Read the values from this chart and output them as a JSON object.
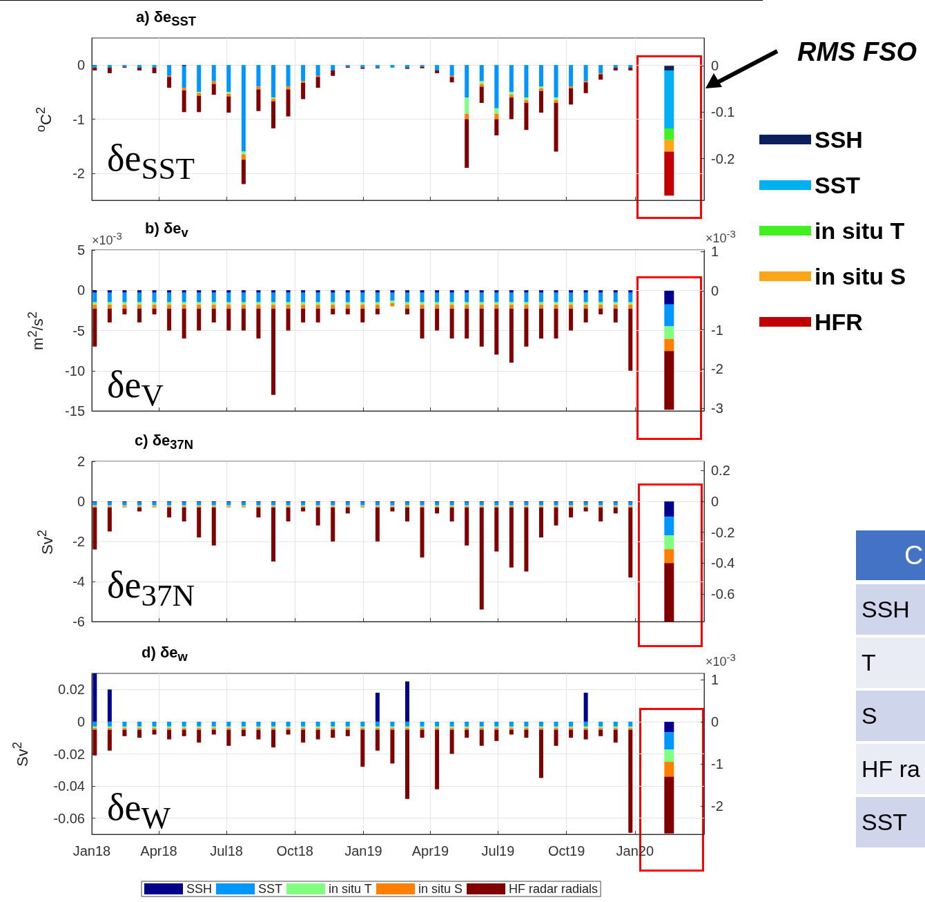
{
  "chart_data": [
    {
      "type": "bar",
      "title": "a) δe$_{SST}$",
      "ylabel": "$^{o}$C$^{2}$",
      "annotations": [
        "δe$_{SST}$",
        "RMS FSO"
      ],
      "stacked": true,
      "grid": true,
      "legend": "right",
      "tick_labels": "y",
      "x": [
        "2018-01-05",
        "2018-01-25",
        "2018-02-14",
        "2018-03-06",
        "2018-03-26",
        "2018-04-15",
        "2018-05-05",
        "2018-05-25",
        "2018-06-14",
        "2018-07-04",
        "2018-07-24",
        "2018-08-13",
        "2018-09-02",
        "2018-09-22",
        "2018-10-12",
        "2018-11-01",
        "2018-11-21",
        "2018-12-11",
        "2018-12-31",
        "2019-01-20",
        "2019-02-09",
        "2019-03-01",
        "2019-03-21",
        "2019-04-10",
        "2019-04-30",
        "2019-05-20",
        "2019-06-09",
        "2019-06-29",
        "2019-07-19",
        "2019-08-08",
        "2019-08-28",
        "2019-09-17",
        "2019-10-07",
        "2019-10-27",
        "2019-11-16",
        "2019-12-06",
        "2019-12-26"
      ],
      "xlim": [
        "2018-01-01",
        "2020-04-03"
      ],
      "xticks": [
        {
          "value": "2018-01-01",
          "label": null
        },
        {
          "value": "2018-04-01",
          "label": null
        },
        {
          "value": "2018-07-01",
          "label": null
        },
        {
          "value": "2018-10-01",
          "label": null
        },
        {
          "value": "2019-01-01",
          "label": null
        },
        {
          "value": "2019-04-01",
          "label": null
        },
        {
          "value": "2019-07-01",
          "label": null
        },
        {
          "value": "2019-10-01",
          "label": null
        },
        {
          "value": "2020-01-01",
          "label": null
        }
      ],
      "ylim": [
        -2.5,
        0.5
      ],
      "yticks": [
        -2,
        -1,
        0
      ],
      "y2lim": [
        -0.29,
        0.06
      ],
      "y2ticks": [
        -0.2,
        -0.1,
        0
      ],
      "series": [
        {
          "color": "#00008b",
          "values": [
            0,
            0,
            0,
            0,
            0,
            0,
            -0.02,
            0,
            0,
            0,
            0,
            0,
            0,
            0,
            0,
            0,
            0,
            0,
            0,
            0,
            0,
            0,
            0,
            0,
            0,
            0,
            0,
            0,
            0,
            0,
            0,
            0,
            0,
            0,
            0,
            0,
            0
          ]
        },
        {
          "color": "#0096ff",
          "values": [
            -0.05,
            -0.05,
            -0.03,
            -0.05,
            -0.05,
            -0.2,
            -0.4,
            -0.5,
            -0.3,
            -0.5,
            -1.6,
            -0.4,
            -0.6,
            -0.4,
            -0.3,
            -0.2,
            -0.1,
            -0.03,
            -0.05,
            -0.05,
            -0.05,
            -0.05,
            -0.03,
            -0.1,
            -0.2,
            -0.6,
            -0.3,
            -0.8,
            -0.5,
            -0.6,
            -0.4,
            -0.6,
            -0.4,
            -0.3,
            -0.15,
            -0.05,
            -0.05
          ]
        },
        {
          "color": "#80ff80",
          "values": [
            0,
            0,
            0,
            0,
            0,
            0,
            0,
            -0.02,
            0,
            -0.03,
            -0.05,
            0,
            -0.02,
            0,
            0,
            0,
            0,
            0,
            0,
            0,
            0,
            0,
            0,
            0,
            0,
            -0.3,
            -0.05,
            -0.1,
            -0.05,
            -0.05,
            -0.03,
            -0.05,
            0,
            0,
            0,
            0,
            0
          ]
        },
        {
          "color": "#ff7f00",
          "values": [
            0,
            0,
            0,
            0,
            0,
            -0.02,
            -0.05,
            -0.05,
            -0.05,
            -0.05,
            -0.1,
            -0.05,
            -0.05,
            -0.05,
            -0.03,
            -0.02,
            0,
            0,
            0,
            0,
            0,
            0,
            0,
            0,
            -0.02,
            -0.1,
            -0.05,
            -0.1,
            -0.05,
            -0.05,
            -0.05,
            -0.05,
            -0.03,
            -0.02,
            -0.02,
            0,
            0
          ]
        },
        {
          "color": "#800000",
          "values": [
            -0.05,
            -0.1,
            -0.02,
            -0.05,
            -0.1,
            -0.2,
            -0.4,
            -0.3,
            -0.2,
            -0.3,
            -0.45,
            -0.4,
            -0.5,
            -0.5,
            -0.3,
            -0.2,
            -0.1,
            -0.02,
            -0.02,
            -0.01,
            0,
            -0.02,
            -0.03,
            -0.05,
            -0.1,
            -0.9,
            -0.3,
            -0.3,
            -0.4,
            -0.5,
            -0.4,
            -0.9,
            -0.3,
            -0.2,
            -0.1,
            -0.05,
            -0.05
          ]
        },
        {
          "name": "SSH",
          "color": "#0b1f5c",
          "axis": "y2",
          "x": [
            "2020-02-16"
          ],
          "values": [
            -0.01
          ]
        },
        {
          "name": "SST",
          "color": "#00b0f0",
          "axis": "y2",
          "x": [
            "2020-02-16"
          ],
          "values": [
            -0.125
          ]
        },
        {
          "name": "in situ T",
          "color": "#40f020",
          "axis": "y2",
          "x": [
            "2020-02-16"
          ],
          "values": [
            -0.025
          ]
        },
        {
          "name": "in situ S",
          "color": "#ffa518",
          "axis": "y2",
          "x": [
            "2020-02-16"
          ],
          "values": [
            -0.025
          ]
        },
        {
          "name": "HFR",
          "color": "#c00000",
          "axis": "y2",
          "x": [
            "2020-02-16"
          ],
          "values": [
            -0.095
          ]
        }
      ]
    },
    {
      "type": "bar",
      "title": "b) δe$_{v}$",
      "ylabel": "m$^{2}$/s$^{2}$",
      "annotations": [
        "δe$_{V}$",
        "×10$^{-3}$",
        "×10$^{-3}$"
      ],
      "stacked": true,
      "grid": true,
      "tick_labels": "y",
      "x": [
        "2018-01-05",
        "2018-01-25",
        "2018-02-14",
        "2018-03-06",
        "2018-03-26",
        "2018-04-15",
        "2018-05-05",
        "2018-05-25",
        "2018-06-14",
        "2018-07-04",
        "2018-07-24",
        "2018-08-13",
        "2018-09-02",
        "2018-09-22",
        "2018-10-12",
        "2018-11-01",
        "2018-11-21",
        "2018-12-11",
        "2018-12-31",
        "2019-01-20",
        "2019-02-09",
        "2019-03-01",
        "2019-03-21",
        "2019-04-10",
        "2019-04-30",
        "2019-05-20",
        "2019-06-09",
        "2019-06-29",
        "2019-07-19",
        "2019-08-08",
        "2019-08-28",
        "2019-09-17",
        "2019-10-07",
        "2019-10-27",
        "2019-11-16",
        "2019-12-06",
        "2019-12-26"
      ],
      "xlim": [
        "2018-01-01",
        "2020-04-03"
      ],
      "xticks": [
        {
          "value": "2018-01-01",
          "label": null
        },
        {
          "value": "2018-04-01",
          "label": null
        },
        {
          "value": "2018-07-01",
          "label": null
        },
        {
          "value": "2018-10-01",
          "label": null
        },
        {
          "value": "2019-01-01",
          "label": null
        },
        {
          "value": "2019-04-01",
          "label": null
        },
        {
          "value": "2019-07-01",
          "label": null
        },
        {
          "value": "2019-10-01",
          "label": null
        },
        {
          "value": "2020-01-01",
          "label": null
        }
      ],
      "ylim": [
        -15,
        5
      ],
      "yticks": [
        -15,
        -10,
        -5,
        0,
        5
      ],
      "y2lim": [
        -3.07,
        1.04
      ],
      "y2ticks": [
        -3,
        -2,
        -1,
        0,
        1
      ],
      "series": [
        {
          "color": "#00008b",
          "values": [
            -0.3,
            -0.3,
            -0.3,
            -0.3,
            -0.3,
            -0.3,
            -0.3,
            -0.3,
            -0.3,
            -0.3,
            -0.3,
            -0.3,
            -0.3,
            -0.3,
            -0.3,
            -0.3,
            -0.3,
            -0.3,
            -0.3,
            -0.3,
            -0.3,
            -0.3,
            -0.3,
            -0.3,
            -0.3,
            -0.3,
            -0.3,
            -0.3,
            -0.3,
            -0.3,
            -0.3,
            -0.3,
            -0.3,
            -0.3,
            -0.3,
            -0.3,
            -0.3
          ]
        },
        {
          "color": "#0096ff",
          "values": [
            -1.2,
            -1.2,
            -1.2,
            -1.2,
            -1.2,
            -1.2,
            -1.2,
            -1.2,
            -1.2,
            -1.2,
            -1.2,
            -1.2,
            -1.2,
            -1.2,
            -1.2,
            -1.2,
            -1.2,
            -1.2,
            -1.2,
            -1.2,
            -1,
            -1.2,
            -1.2,
            -1.2,
            -1.2,
            -1.2,
            -1.2,
            -1.2,
            -1.2,
            -1.2,
            -1.2,
            -1.2,
            -1.2,
            -1.2,
            -1.2,
            -1.2,
            -1.2
          ]
        },
        {
          "color": "#80ff80",
          "values": [
            -0.3,
            -0.3,
            -0.3,
            -0.3,
            -0.3,
            -0.3,
            -0.3,
            -0.3,
            -0.3,
            -0.3,
            -0.3,
            -0.3,
            -0.3,
            -0.3,
            -0.3,
            -0.3,
            -0.3,
            -0.3,
            -0.3,
            -0.3,
            -0.3,
            -0.3,
            -0.3,
            -0.3,
            -0.3,
            -0.3,
            -0.3,
            -0.3,
            -0.3,
            -0.3,
            -0.3,
            -0.3,
            -0.3,
            -0.3,
            -0.3,
            -0.3,
            -0.3
          ]
        },
        {
          "color": "#ff7f00",
          "values": [
            -0.5,
            -0.5,
            -0.5,
            -0.5,
            -0.5,
            -0.5,
            -0.5,
            -0.5,
            -0.5,
            -0.5,
            -0.5,
            -0.5,
            -0.5,
            -0.5,
            -0.5,
            -0.5,
            -0.5,
            -0.5,
            -0.5,
            -0.5,
            -0.4,
            -0.5,
            -0.5,
            -0.5,
            -0.5,
            -0.5,
            -0.5,
            -0.5,
            -0.5,
            -0.5,
            -0.5,
            -0.5,
            -0.5,
            -0.5,
            -0.5,
            -0.5,
            -0.5
          ]
        },
        {
          "color": "#800000",
          "values": [
            -4.7,
            -1.7,
            -0.7,
            -1.7,
            -0.7,
            -2.7,
            -3.7,
            -2.7,
            -1.7,
            -2.7,
            -2.7,
            -3.7,
            -10.7,
            -2.7,
            -1.7,
            -1.7,
            -0.7,
            -0.7,
            -1.7,
            -0.7,
            0,
            -0.7,
            -3.7,
            -2.7,
            -3.7,
            -3.7,
            -4.7,
            -5.7,
            -6.7,
            -4.7,
            -3.7,
            -3.7,
            -2.7,
            -1.7,
            -0.7,
            -1.7,
            -7.7
          ]
        },
        {
          "color": "#00008b",
          "axis": "y2",
          "x": [
            "2020-02-16"
          ],
          "values": [
            -0.35
          ]
        },
        {
          "color": "#0096ff",
          "axis": "y2",
          "x": [
            "2020-02-16"
          ],
          "values": [
            -0.56
          ]
        },
        {
          "color": "#80ff80",
          "axis": "y2",
          "x": [
            "2020-02-16"
          ],
          "values": [
            -0.32
          ]
        },
        {
          "color": "#ff7f00",
          "axis": "y2",
          "x": [
            "2020-02-16"
          ],
          "values": [
            -0.31
          ]
        },
        {
          "color": "#800000",
          "axis": "y2",
          "x": [
            "2020-02-16"
          ],
          "values": [
            -1.5
          ]
        }
      ]
    },
    {
      "type": "bar",
      "title": "c) δe$_{37N}$",
      "ylabel": "Sv$^{2}$",
      "annotations": [
        "δe$_{37N}$"
      ],
      "stacked": true,
      "grid": true,
      "tick_labels": "y",
      "x": [
        "2018-01-05",
        "2018-01-25",
        "2018-02-14",
        "2018-03-06",
        "2018-03-26",
        "2018-04-15",
        "2018-05-05",
        "2018-05-25",
        "2018-06-14",
        "2018-07-04",
        "2018-07-24",
        "2018-08-13",
        "2018-09-02",
        "2018-09-22",
        "2018-10-12",
        "2018-11-01",
        "2018-11-21",
        "2018-12-11",
        "2018-12-31",
        "2019-01-20",
        "2019-02-09",
        "2019-03-01",
        "2019-03-21",
        "2019-04-10",
        "2019-04-30",
        "2019-05-20",
        "2019-06-09",
        "2019-06-29",
        "2019-07-19",
        "2019-08-08",
        "2019-08-28",
        "2019-09-17",
        "2019-10-07",
        "2019-10-27",
        "2019-11-16",
        "2019-12-06",
        "2019-12-26"
      ],
      "xlim": [
        "2018-01-01",
        "2020-04-03"
      ],
      "xticks": [
        {
          "value": "2018-01-01",
          "label": null
        },
        {
          "value": "2018-04-01",
          "label": null
        },
        {
          "value": "2018-07-01",
          "label": null
        },
        {
          "value": "2018-10-01",
          "label": null
        },
        {
          "value": "2019-01-01",
          "label": null
        },
        {
          "value": "2019-04-01",
          "label": null
        },
        {
          "value": "2019-07-01",
          "label": null
        },
        {
          "value": "2019-10-01",
          "label": null
        },
        {
          "value": "2020-01-01",
          "label": null
        }
      ],
      "ylim": [
        -6,
        2
      ],
      "yticks": [
        -6,
        -4,
        -2,
        0,
        2
      ],
      "y2lim": [
        -0.78,
        0.26
      ],
      "y2ticks": [
        -0.6,
        -0.4,
        -0.2,
        0,
        0.2
      ],
      "series": [
        {
          "color": "#00008b",
          "values": [
            -0.05,
            -0.05,
            -0.05,
            -0.05,
            -0.05,
            -0.05,
            -0.05,
            -0.05,
            -0.05,
            -0.05,
            -0.05,
            -0.05,
            -0.05,
            -0.05,
            -0.05,
            -0.05,
            -0.05,
            -0.05,
            -0.05,
            -0.05,
            -0.05,
            -0.05,
            -0.05,
            -0.05,
            -0.05,
            -0.05,
            -0.05,
            -0.05,
            -0.05,
            -0.05,
            -0.05,
            -0.05,
            -0.05,
            -0.05,
            -0.05,
            -0.05,
            -0.05
          ]
        },
        {
          "color": "#0096ff",
          "values": [
            -0.15,
            -0.15,
            -0.15,
            -0.15,
            -0.15,
            -0.15,
            -0.15,
            -0.15,
            -0.15,
            -0.15,
            -0.15,
            -0.15,
            -0.15,
            -0.15,
            -0.15,
            -0.15,
            -0.15,
            -0.15,
            -0.15,
            -0.15,
            -0.15,
            -0.15,
            -0.15,
            -0.15,
            -0.15,
            -0.15,
            -0.15,
            -0.15,
            -0.15,
            -0.15,
            -0.15,
            -0.15,
            -0.15,
            -0.15,
            -0.15,
            -0.15,
            -0.15
          ]
        },
        {
          "color": "#80ff80",
          "values": [
            -0.05,
            -0.05,
            -0.05,
            -0.05,
            -0.05,
            -0.05,
            -0.05,
            -0.05,
            -0.05,
            -0.05,
            -0.05,
            -0.05,
            -0.05,
            -0.05,
            -0.05,
            -0.05,
            -0.05,
            -0.05,
            -0.05,
            -0.05,
            -0.05,
            -0.05,
            -0.05,
            -0.05,
            -0.05,
            -0.05,
            -0.05,
            -0.05,
            -0.05,
            -0.05,
            -0.05,
            -0.05,
            -0.05,
            -0.05,
            -0.05,
            -0.05,
            -0.05
          ]
        },
        {
          "color": "#ff7f00",
          "values": [
            -0.05,
            -0.05,
            -0.05,
            -0.05,
            -0.05,
            -0.05,
            -0.05,
            -0.05,
            -0.05,
            -0.05,
            -0.05,
            -0.05,
            -0.05,
            -0.05,
            -0.05,
            -0.05,
            -0.05,
            -0.05,
            -0.05,
            -0.05,
            -0.05,
            -0.05,
            -0.05,
            -0.05,
            -0.05,
            -0.05,
            -0.05,
            -0.05,
            -0.05,
            -0.05,
            -0.05,
            -0.05,
            -0.05,
            -0.05,
            -0.05,
            -0.05,
            -0.05
          ]
        },
        {
          "color": "#800000",
          "values": [
            -2.1,
            -1.2,
            0,
            -0.2,
            0,
            -0.5,
            -0.7,
            -1.5,
            -1.9,
            0,
            0,
            -0.5,
            -2.7,
            -0.7,
            -0.2,
            -0.9,
            -1.7,
            -0.3,
            0,
            -1.7,
            -0.2,
            -0.7,
            -2.5,
            -0.3,
            -0.7,
            -1.9,
            -5.1,
            -2.2,
            -3,
            -3.2,
            -1.5,
            -0.9,
            -0.5,
            -0.2,
            -0.7,
            -0.3,
            -3.5
          ]
        },
        {
          "color": "#00008b",
          "axis": "y2",
          "x": [
            "2020-02-16"
          ],
          "values": [
            -0.1
          ]
        },
        {
          "color": "#0096ff",
          "axis": "y2",
          "x": [
            "2020-02-16"
          ],
          "values": [
            -0.12
          ]
        },
        {
          "color": "#80ff80",
          "axis": "y2",
          "x": [
            "2020-02-16"
          ],
          "values": [
            -0.09
          ]
        },
        {
          "color": "#ff7f00",
          "axis": "y2",
          "x": [
            "2020-02-16"
          ],
          "values": [
            -0.09
          ]
        },
        {
          "color": "#800000",
          "axis": "y2",
          "x": [
            "2020-02-16"
          ],
          "values": [
            -0.38
          ]
        }
      ]
    },
    {
      "type": "bar",
      "title": "d) δe$_{w}$",
      "ylabel": "Sv$^{2}$",
      "annotations": [
        "δe$_{W}$",
        "×10$^{-3}$"
      ],
      "stacked": true,
      "grid": true,
      "legend": "bottom",
      "x": [
        "2018-01-05",
        "2018-01-25",
        "2018-02-14",
        "2018-03-06",
        "2018-03-26",
        "2018-04-15",
        "2018-05-05",
        "2018-05-25",
        "2018-06-14",
        "2018-07-04",
        "2018-07-24",
        "2018-08-13",
        "2018-09-02",
        "2018-09-22",
        "2018-10-12",
        "2018-11-01",
        "2018-11-21",
        "2018-12-11",
        "2018-12-31",
        "2019-01-20",
        "2019-02-09",
        "2019-03-01",
        "2019-03-21",
        "2019-04-10",
        "2019-04-30",
        "2019-05-20",
        "2019-06-09",
        "2019-06-29",
        "2019-07-19",
        "2019-08-08",
        "2019-08-28",
        "2019-09-17",
        "2019-10-07",
        "2019-10-27",
        "2019-11-16",
        "2019-12-06",
        "2019-12-26"
      ],
      "xlim": [
        "2018-01-01",
        "2020-04-03"
      ],
      "xticks": [
        {
          "value": "2018-01-01",
          "label": "Jan18"
        },
        {
          "value": "2018-04-01",
          "label": "Apr18"
        },
        {
          "value": "2018-07-01",
          "label": "Jul18"
        },
        {
          "value": "2018-10-01",
          "label": "Oct18"
        },
        {
          "value": "2019-01-01",
          "label": "Jan19"
        },
        {
          "value": "2019-04-01",
          "label": "Apr19"
        },
        {
          "value": "2019-07-01",
          "label": "Jul19"
        },
        {
          "value": "2019-10-01",
          "label": "Oct19"
        },
        {
          "value": "2020-01-01",
          "label": "Jan20"
        }
      ],
      "ylim": [
        -0.07,
        0.03
      ],
      "yticks": [
        -0.06,
        -0.04,
        -0.02,
        0,
        0.02
      ],
      "y2lim": [
        -2.67,
        1.15
      ],
      "y2ticks": [
        -2,
        -1,
        0,
        1
      ],
      "series": [
        {
          "name": "SSH",
          "color": "#00008b",
          "values": [
            0.03,
            0.02,
            0,
            0,
            0,
            0,
            0,
            0,
            0,
            0,
            0,
            0,
            0,
            0,
            0,
            0,
            0,
            0,
            0,
            0.018,
            0,
            0.025,
            0,
            0,
            0,
            0,
            0,
            0,
            0,
            0,
            0,
            0,
            0,
            0.018,
            0,
            0,
            0
          ]
        },
        {
          "name": "SST",
          "color": "#0096ff",
          "values": [
            -0.003,
            -0.003,
            -0.003,
            -0.003,
            -0.003,
            -0.003,
            -0.003,
            -0.003,
            -0.003,
            -0.003,
            -0.003,
            -0.003,
            -0.003,
            -0.003,
            -0.003,
            -0.003,
            -0.003,
            -0.003,
            -0.003,
            -0.003,
            -0.003,
            -0.003,
            -0.003,
            -0.003,
            -0.003,
            -0.003,
            -0.003,
            -0.003,
            -0.003,
            -0.003,
            -0.003,
            -0.003,
            -0.003,
            -0.003,
            -0.003,
            -0.003,
            -0.003
          ]
        },
        {
          "name": "in situ T",
          "color": "#80ff80",
          "values": [
            -0.001,
            -0.001,
            -0.001,
            -0.001,
            -0.001,
            -0.001,
            -0.001,
            -0.001,
            -0.001,
            -0.001,
            -0.001,
            -0.001,
            -0.001,
            -0.001,
            -0.001,
            -0.001,
            -0.001,
            -0.001,
            -0.001,
            -0.001,
            -0.001,
            -0.001,
            -0.001,
            -0.001,
            -0.001,
            -0.001,
            -0.001,
            -0.001,
            -0.001,
            -0.001,
            -0.001,
            -0.001,
            -0.001,
            -0.001,
            -0.001,
            -0.001,
            -0.001
          ]
        },
        {
          "name": "in situ S",
          "color": "#ff7f00",
          "values": [
            -0.001,
            -0.001,
            -0.001,
            -0.001,
            -0.001,
            -0.001,
            -0.001,
            -0.001,
            -0.001,
            -0.001,
            -0.001,
            -0.001,
            -0.001,
            -0.001,
            -0.001,
            -0.001,
            -0.001,
            -0.001,
            -0.001,
            -0.001,
            -0.001,
            -0.001,
            -0.001,
            -0.001,
            -0.001,
            -0.001,
            -0.001,
            -0.001,
            -0.001,
            -0.001,
            -0.001,
            -0.001,
            -0.001,
            -0.001,
            -0.001,
            -0.001,
            -0.001
          ]
        },
        {
          "name": "HF radar radials",
          "color": "#800000",
          "values": [
            -0.016,
            -0.013,
            -0.004,
            -0.005,
            -0.003,
            -0.006,
            -0.004,
            -0.008,
            -0.003,
            -0.01,
            -0.004,
            -0.006,
            -0.011,
            -0.003,
            -0.008,
            -0.006,
            -0.005,
            -0.004,
            -0.023,
            -0.013,
            -0.021,
            -0.043,
            -0.005,
            -0.037,
            -0.015,
            -0.005,
            -0.01,
            -0.007,
            -0.003,
            -0.005,
            -0.03,
            -0.01,
            -0.005,
            -0.006,
            -0.004,
            -0.008,
            -0.064
          ]
        },
        {
          "color": "#00008b",
          "axis": "y2",
          "x": [
            "2020-02-16"
          ],
          "values": [
            -0.25
          ]
        },
        {
          "color": "#0096ff",
          "axis": "y2",
          "x": [
            "2020-02-16"
          ],
          "values": [
            -0.41
          ]
        },
        {
          "color": "#80ff80",
          "axis": "y2",
          "x": [
            "2020-02-16"
          ],
          "values": [
            -0.29
          ]
        },
        {
          "color": "#ff7f00",
          "axis": "y2",
          "x": [
            "2020-02-16"
          ],
          "values": [
            -0.35
          ]
        },
        {
          "color": "#800000",
          "axis": "y2",
          "x": [
            "2020-02-16"
          ],
          "values": [
            -1.35
          ]
        }
      ]
    },
    {
      "type": "other",
      "title": "C",
      "annotations": [
        "SSH",
        "T",
        "S",
        "HF ra",
        "SST"
      ]
    }
  ]
}
